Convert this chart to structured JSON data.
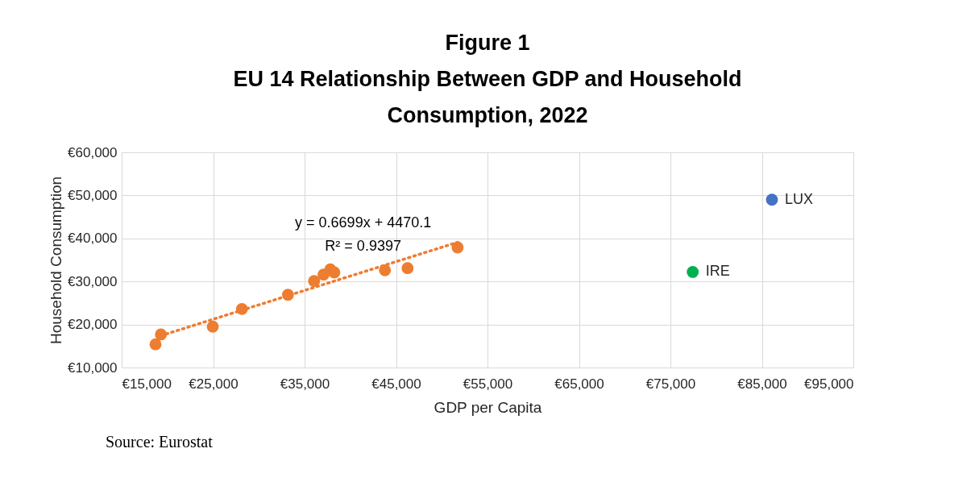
{
  "chart_data": {
    "type": "scatter",
    "title": "Figure 1",
    "subtitle": "EU 14 Relationship Between GDP and Household Consumption, 2022",
    "xlabel": "GDP per Capita",
    "ylabel": "Household Consumption",
    "series": [
      {
        "color": "#ed7d31",
        "x": [
          18700,
          19290,
          24960,
          28150,
          33180,
          36040,
          37070,
          37810,
          38250,
          43790,
          46260,
          51730
        ],
        "values": [
          15400,
          17700,
          19500,
          23600,
          26900,
          30100,
          31600,
          32800,
          32100,
          32600,
          33100,
          37900
        ]
      },
      {
        "name": "LUX",
        "color": "#4472c4",
        "x": [
          86100
        ],
        "values": [
          49000
        ]
      },
      {
        "name": "IRE",
        "color": "#00b050",
        "x": [
          77440
        ],
        "values": [
          32200
        ]
      },
      {
        "type": "line",
        "color": "#ed7d31",
        "line_style": "dotted",
        "marker": "none",
        "x": [
          19290,
          51730
        ],
        "values": [
          17400,
          39100
        ]
      }
    ],
    "xlim": [
      15000,
      95000
    ],
    "xticks": [
      {
        "value": 15000,
        "label": "€15,000"
      },
      {
        "value": 25000,
        "label": "€25,000"
      },
      {
        "value": 35000,
        "label": "€35,000"
      },
      {
        "value": 45000,
        "label": "€45,000"
      },
      {
        "value": 55000,
        "label": "€55,000"
      },
      {
        "value": 65000,
        "label": "€65,000"
      },
      {
        "value": 75000,
        "label": "€75,000"
      },
      {
        "value": 85000,
        "label": "€85,000"
      },
      {
        "value": 95000,
        "label": "€95,000"
      }
    ],
    "ylim": [
      10000,
      60000
    ],
    "yticks": [
      {
        "value": 10000,
        "label": "€10,000"
      },
      {
        "value": 20000,
        "label": "€20,000"
      },
      {
        "value": 30000,
        "label": "€30,000"
      },
      {
        "value": 40000,
        "label": "€40,000"
      },
      {
        "value": 50000,
        "label": "€50,000"
      },
      {
        "value": 60000,
        "label": "€60,000"
      }
    ],
    "annotations": [
      "y = 0.6699x + 4470.1",
      "R² = 0.9397",
      "Source: Eurostat"
    ],
    "grid": true,
    "marker": "circle"
  }
}
